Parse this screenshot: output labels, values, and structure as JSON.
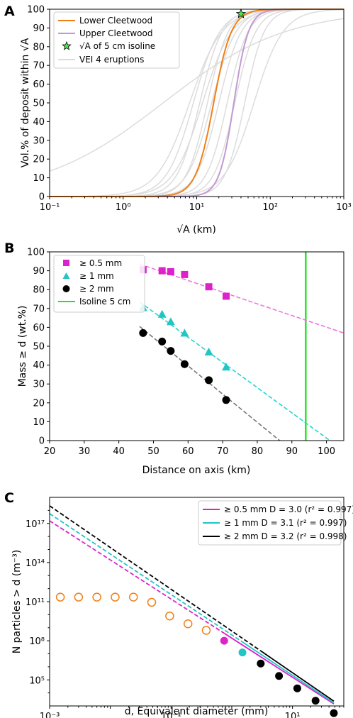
{
  "chart_data": [
    {
      "panel_letter": "A",
      "type": "line",
      "xlabel": "√A (km)",
      "ylabel": "Vol.% of deposit within √A",
      "xscale": "log",
      "xlim": [
        0.1,
        1000
      ],
      "ylim": [
        0,
        100
      ],
      "xtick_labels": [
        "10⁻¹",
        "10⁰",
        "10¹",
        "10²",
        "10³"
      ],
      "xticks": [
        0.1,
        1,
        10,
        100,
        1000
      ],
      "yticks": [
        0,
        10,
        20,
        30,
        40,
        50,
        60,
        70,
        80,
        90,
        100
      ],
      "ytick_labels": [
        "0",
        "10",
        "20",
        "30",
        "40",
        "50",
        "60",
        "70",
        "80",
        "90",
        "100"
      ],
      "grid": false,
      "legend_position": "top-left",
      "legend": {
        "lower": "Lower Cleetwood",
        "upper": "Upper Cleetwood",
        "star": "√A of 5 cm isoline",
        "vei": "VEI 4 eruptions"
      },
      "colors": {
        "lower": "#f07f17",
        "upper": "#c299d3",
        "vei": "#dcdcdc",
        "star": "#4ee44e"
      },
      "series": [
        {
          "name": "Lower Cleetwood",
          "logistic_center_km": 17,
          "logistic_k": 8.2
        },
        {
          "name": "Upper Cleetwood",
          "logistic_center_km": 32,
          "logistic_k": 10
        }
      ],
      "vei_curves": [
        {
          "center_km": 3.5,
          "k": 1.2
        },
        {
          "center_km": 8,
          "k": 4.5
        },
        {
          "center_km": 9,
          "k": 5.5
        },
        {
          "center_km": 11,
          "k": 6.5
        },
        {
          "center_km": 12,
          "k": 5
        },
        {
          "center_km": 14,
          "k": 7
        },
        {
          "center_km": 16,
          "k": 6
        },
        {
          "center_km": 20,
          "k": 6.5
        },
        {
          "center_km": 26,
          "k": 7
        },
        {
          "center_km": 33,
          "k": 7
        },
        {
          "center_km": 45,
          "k": 7.5
        },
        {
          "center_km": 60,
          "k": 5
        }
      ],
      "star_point": {
        "x": 40,
        "y": 97.5
      }
    },
    {
      "panel_letter": "B",
      "type": "scatter",
      "xlabel": "Distance on axis (km)",
      "ylabel": "Mass ≥ d (wt.%)",
      "xlim": [
        20,
        105
      ],
      "ylim": [
        0,
        100
      ],
      "xticks": [
        20,
        30,
        40,
        50,
        60,
        70,
        80,
        90,
        100
      ],
      "yticks": [
        0,
        10,
        20,
        30,
        40,
        50,
        60,
        70,
        80,
        90,
        100
      ],
      "grid": false,
      "legend_position": "top-left",
      "isoline": {
        "name": "Isoline 5 cm",
        "x": 94,
        "color": "#22e622"
      },
      "series": [
        {
          "name": "≥ 0.5 mm",
          "marker": "square",
          "color": "#dd22cc",
          "line_color": "#ee77dd",
          "x": [
            47,
            52.5,
            55,
            59,
            66,
            71
          ],
          "y": [
            90.5,
            90,
            89.5,
            88,
            81.5,
            76.5
          ],
          "fit": {
            "x": [
              46,
              105
            ],
            "y": [
              93.5,
              57
            ]
          }
        },
        {
          "name": "≥ 1 mm",
          "marker": "triangle",
          "color": "#22c4c4",
          "line_color": "#22d4d4",
          "x": [
            47,
            52.5,
            55,
            59,
            66,
            71
          ],
          "y": [
            70.5,
            67,
            63,
            57,
            47,
            39
          ],
          "fit": {
            "x": [
              46,
              101
            ],
            "y": [
              73.5,
              0
            ]
          }
        },
        {
          "name": "≥ 2 mm",
          "marker": "circle",
          "color": "#000000",
          "line_color": "#777777",
          "x": [
            47,
            52.5,
            55,
            59,
            66,
            71
          ],
          "y": [
            57,
            52.5,
            47.5,
            40.5,
            32,
            21.5
          ],
          "fit": {
            "x": [
              46,
              86.5
            ],
            "y": [
              60.5,
              0
            ]
          }
        }
      ]
    },
    {
      "panel_letter": "C",
      "type": "scatter",
      "xlabel": "d, Equivalent diameter (mm)",
      "ylabel": "N particles > d (m⁻³)",
      "xscale": "log",
      "yscale": "log",
      "xlim": [
        0.001,
        70
      ],
      "ylim_log10": [
        3,
        19
      ],
      "xticks": [
        0.001,
        0.1,
        10
      ],
      "xtick_labels": [
        "10⁻³",
        "10⁻¹",
        "10¹"
      ],
      "yticks_log10": [
        5,
        8,
        11,
        14,
        17
      ],
      "ytick_labels": [
        "10⁵",
        "10⁸",
        "10¹¹",
        "10¹⁴",
        "10¹⁷"
      ],
      "grid": false,
      "legend_position": "top-right",
      "series": [
        {
          "name": "≥ 0.5 mm D = 3.0 (r² = 0.997)",
          "color": "#dd22cc",
          "fit_log10_at_1mm": 8.2,
          "slope": -3.0
        },
        {
          "name": "≥ 1 mm D = 3.1 (r² = 0.997)",
          "color": "#22c4c4",
          "fit_log10_at_1mm": 8.45,
          "slope": -3.1
        },
        {
          "name": "≥ 2 mm D = 3.2 (r² = 0.998)",
          "color": "#000000",
          "fit_log10_at_1mm": 8.75,
          "slope": -3.2
        }
      ],
      "orange_points": {
        "color": "#f07f17",
        "x": [
          0.0015,
          0.003,
          0.006,
          0.012,
          0.024,
          0.048,
          0.095,
          0.19,
          0.38
        ],
        "log10_y": [
          11.35,
          11.35,
          11.35,
          11.35,
          11.35,
          10.95,
          9.9,
          9.3,
          8.8
        ]
      },
      "magenta_point": {
        "x": 0.75,
        "log10_y": 8.0
      },
      "cyan_point": {
        "x": 1.5,
        "log10_y": 7.1
      },
      "black_points": {
        "x": [
          3,
          6,
          12,
          24,
          48
        ],
        "log10_y": [
          6.25,
          5.3,
          4.35,
          3.4,
          2.45
        ]
      }
    }
  ]
}
